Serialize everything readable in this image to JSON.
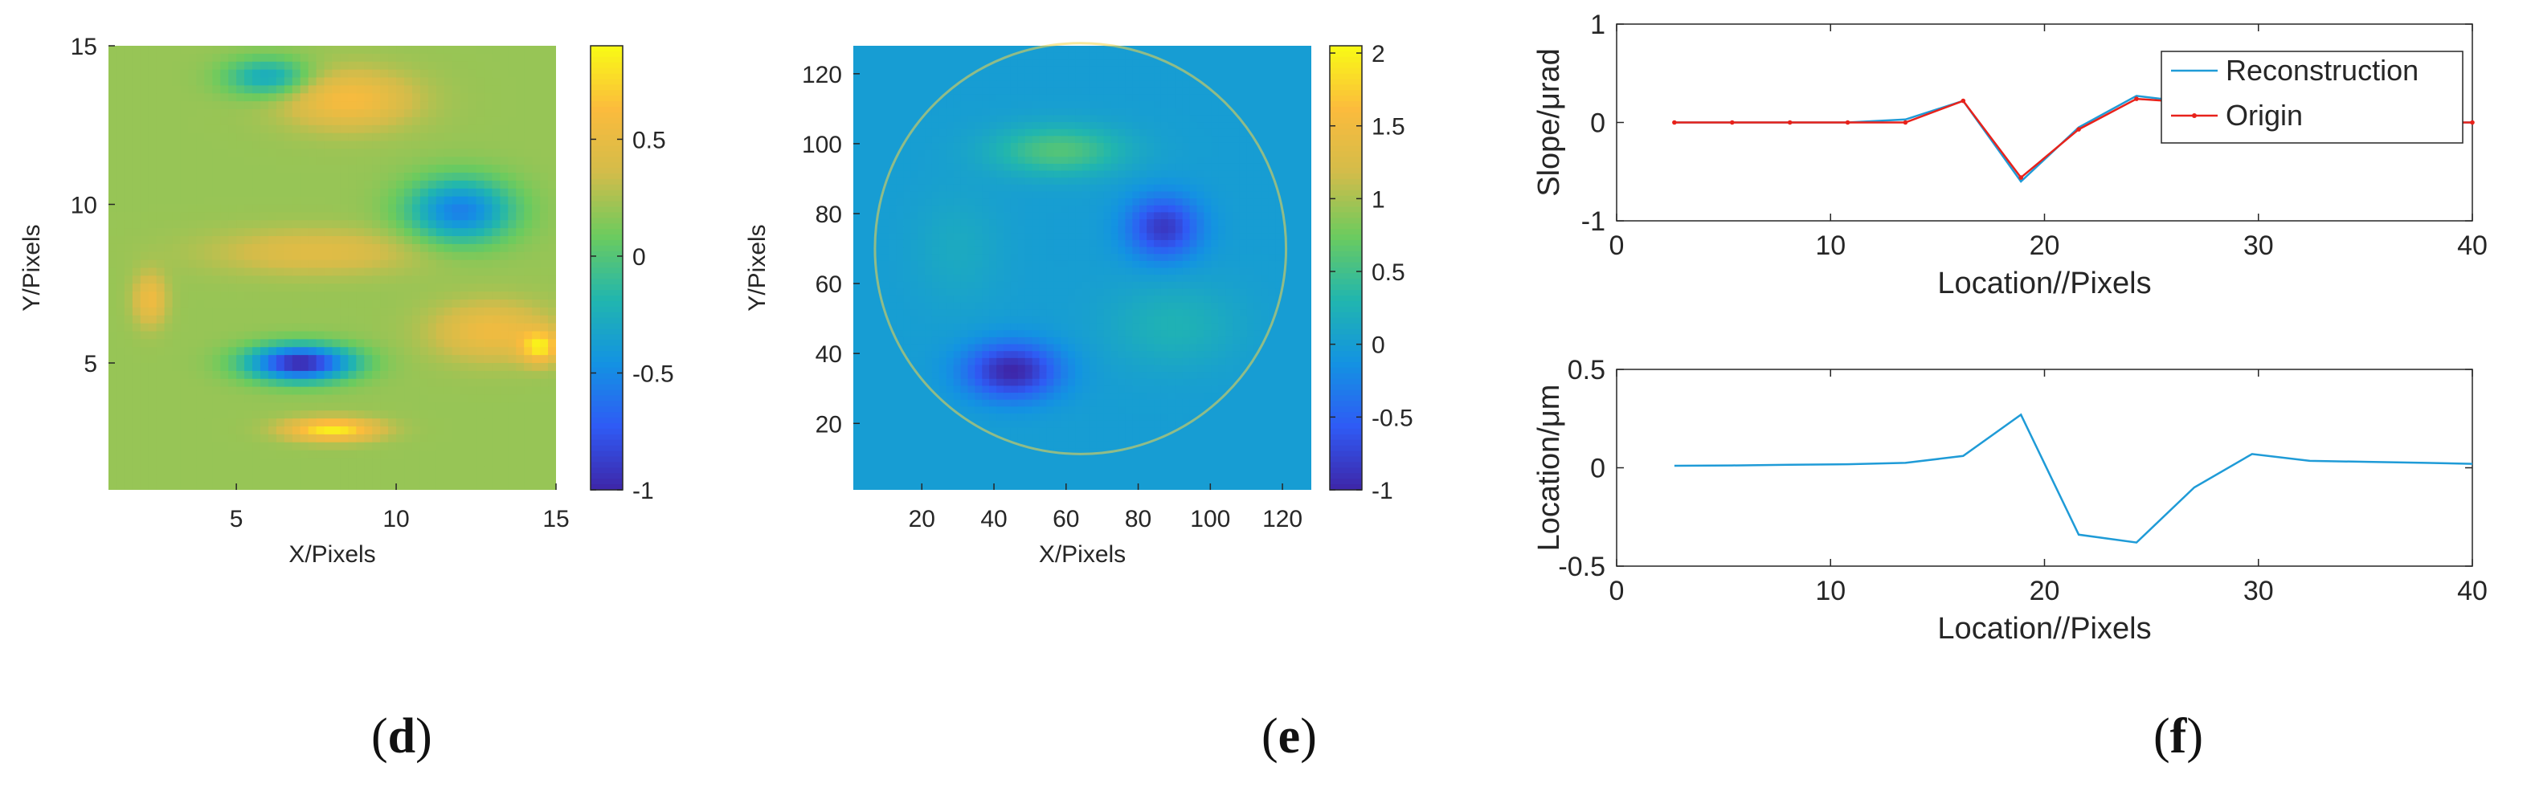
{
  "panel_labels": [
    "d",
    "e",
    "f"
  ],
  "chart_data": [
    {
      "type": "heatmap",
      "panel": "d",
      "xlabel": "X/Pixels",
      "ylabel": "Y/Pixels",
      "xlim": [
        1,
        15
      ],
      "ylim": [
        1,
        15
      ],
      "xticks": [
        5,
        10,
        15
      ],
      "yticks": [
        5,
        10,
        15
      ],
      "colorbar": {
        "ticks": [
          -1,
          -0.5,
          0,
          0.5
        ],
        "tick_labels": [
          "-1",
          "-0.5",
          "0",
          "0.5"
        ],
        "range": [
          -1.0,
          0.9
        ]
      },
      "colormap": [
        "#3e26a8",
        "#2f5bf5",
        "#1393e2",
        "#21b6ae",
        "#6ccb5e",
        "#d3bc4a",
        "#fbbb3d",
        "#f9fb15"
      ],
      "blobs": [
        {
          "x": 7,
          "y": 5,
          "value": -1.0,
          "sx": 1.6,
          "sy": 0.55
        },
        {
          "x": 12,
          "y": 9.8,
          "value": -0.55,
          "sx": 1.6,
          "sy": 1.0
        },
        {
          "x": 6,
          "y": 14,
          "value": -0.3,
          "sx": 1.3,
          "sy": 0.6
        },
        {
          "x": 8.5,
          "y": 13.3,
          "value": 0.6,
          "sx": 2.0,
          "sy": 0.9
        },
        {
          "x": 7.5,
          "y": 8.5,
          "value": 0.45,
          "sx": 3.2,
          "sy": 0.7
        },
        {
          "x": 13,
          "y": 6,
          "value": 0.55,
          "sx": 1.8,
          "sy": 0.9
        },
        {
          "x": 8,
          "y": 2.9,
          "value": 0.85,
          "sx": 1.4,
          "sy": 0.35
        },
        {
          "x": 2.3,
          "y": 7,
          "value": 0.55,
          "sx": 0.5,
          "sy": 0.8
        },
        {
          "x": 14.5,
          "y": 5.5,
          "value": 0.75,
          "sx": 0.6,
          "sy": 0.5
        }
      ]
    },
    {
      "type": "heatmap",
      "panel": "e",
      "xlabel": "X/Pixels",
      "ylabel": "Y/Pixels",
      "xlim": [
        1,
        128
      ],
      "ylim": [
        1,
        128
      ],
      "xticks": [
        20,
        40,
        60,
        80,
        100,
        120
      ],
      "yticks": [
        20,
        40,
        60,
        80,
        100,
        120
      ],
      "colorbar": {
        "ticks": [
          -1,
          -0.5,
          0,
          0.5,
          1,
          1.5,
          2
        ],
        "tick_labels": [
          "-1",
          "-0.5",
          "0",
          "0.5",
          "1",
          "1.5",
          "2"
        ],
        "range": [
          -1.0,
          2.05
        ]
      },
      "background_value": 0.0,
      "aperture": {
        "cx": 64,
        "cy": 70,
        "r": 57
      },
      "blobs": [
        {
          "x": 45,
          "y": 35,
          "value": -1.0,
          "sx": 13,
          "sy": 8
        },
        {
          "x": 87,
          "y": 76,
          "value": -0.85,
          "sx": 10,
          "sy": 9
        },
        {
          "x": 58,
          "y": 98,
          "value": 0.6,
          "sx": 18,
          "sy": 7
        },
        {
          "x": 90,
          "y": 48,
          "value": 0.25,
          "sx": 18,
          "sy": 12
        },
        {
          "x": 30,
          "y": 70,
          "value": 0.15,
          "sx": 12,
          "sy": 16
        }
      ]
    },
    {
      "type": "line",
      "panel": "f-top",
      "xlabel": "Location//Pixels",
      "ylabel": "Slope/μrad",
      "xlim": [
        0,
        40
      ],
      "ylim": [
        -1,
        1
      ],
      "xticks": [
        0,
        10,
        20,
        30,
        40
      ],
      "yticks": [
        -1,
        0,
        1
      ],
      "legend": {
        "position": "top-right"
      },
      "series": [
        {
          "name": "Reconstruction",
          "color": "#1f9bd7",
          "x": [
            2.7,
            5.4,
            8.1,
            10.8,
            13.5,
            16.2,
            18.9,
            21.6,
            24.3,
            27.0,
            29.7,
            32.4,
            35.1,
            37.8,
            40
          ],
          "y": [
            0.0,
            0.0,
            0.0,
            0.0,
            0.03,
            0.22,
            -0.6,
            -0.05,
            0.27,
            0.2,
            0.0,
            0.0,
            0.0,
            0.0,
            0.0
          ]
        },
        {
          "name": "Origin",
          "color": "#e8221b",
          "x": [
            2.7,
            5.4,
            8.1,
            10.8,
            13.5,
            16.2,
            18.9,
            21.6,
            24.3,
            27.0,
            29.7,
            32.4,
            35.1,
            37.8,
            40
          ],
          "y": [
            0.0,
            0.0,
            0.0,
            0.0,
            0.0,
            0.22,
            -0.56,
            -0.07,
            0.24,
            0.2,
            0.0,
            0.0,
            0.0,
            0.0,
            0.0
          ]
        }
      ]
    },
    {
      "type": "line",
      "panel": "f-bottom",
      "xlabel": "Location//Pixels",
      "ylabel": "Location/μm",
      "xlim": [
        0,
        40
      ],
      "ylim": [
        -0.5,
        0.5
      ],
      "xticks": [
        0,
        10,
        20,
        30,
        40
      ],
      "yticks": [
        -0.5,
        0,
        0.5
      ],
      "series": [
        {
          "color": "#1f9bd7",
          "x": [
            2.7,
            5.4,
            8.1,
            10.8,
            13.5,
            16.2,
            18.9,
            21.6,
            24.3,
            27.0,
            29.7,
            32.4,
            35.1,
            37.8,
            40
          ],
          "y": [
            0.01,
            0.012,
            0.015,
            0.018,
            0.025,
            0.06,
            0.27,
            -0.34,
            -0.38,
            -0.1,
            0.07,
            0.035,
            0.03,
            0.025,
            0.02
          ]
        }
      ]
    }
  ]
}
